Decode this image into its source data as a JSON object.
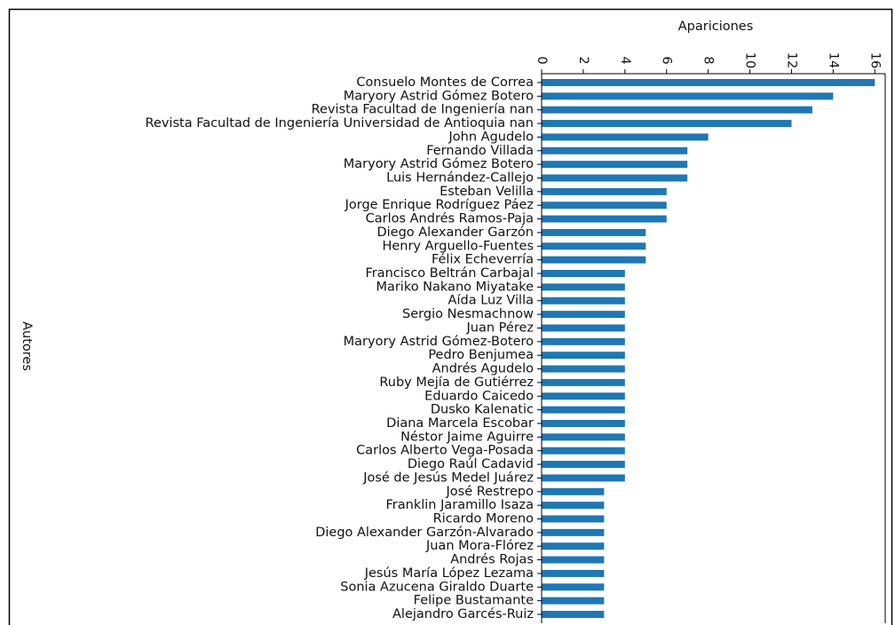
{
  "chart_data": {
    "type": "barh",
    "xlabel": "Apariciones",
    "ylabel": "Autores",
    "categories": [
      "Consuelo Montes de Correa",
      "Maryory Astrid Gómez Botero",
      "Revista Facultad de Ingeniería nan",
      "Revista Facultad de Ingeniería Universidad de Antioquia nan",
      "John Agudelo",
      "Fernando Villada",
      "Maryory Astrid  Gómez Botero",
      "Luis Hernández-Callejo",
      "Esteban Velilla",
      "Jorge Enrique Rodríguez Páez",
      "Carlos Andrés Ramos-Paja",
      "Diego Alexander Garzón",
      "Henry Arguello-Fuentes",
      "Félix Echeverría",
      "Francisco Beltrán Carbajal",
      "Mariko Nakano Miyatake",
      "Aída Luz Villa",
      "Sergio Nesmachnow",
      "Juan Pérez",
      "Maryory Astrid Gómez-Botero",
      "Pedro Benjumea",
      "Andrés Agudelo",
      "Ruby Mejía de Gutiérrez",
      "Eduardo Caicedo",
      "Dusko Kalenatic",
      "Diana Marcela Escobar",
      "Néstor Jaime Aguirre",
      "Carlos Alberto Vega-Posada",
      "Diego Raúl Cadavid",
      "José de Jesús Medel Juárez",
      "José Restrepo",
      "Franklin Jaramillo Isaza",
      "Ricardo Moreno",
      "Diego Alexander Garzón-Alvarado",
      "Juan Mora-Flórez",
      "Andrés Rojas",
      "Jesús María López Lezama",
      "Sonia Azucena Giraldo Duarte",
      "Felipe Bustamante",
      "Alejandro Garcés-Ruiz"
    ],
    "values": [
      16,
      14,
      13,
      12,
      8,
      7,
      7,
      7,
      6,
      6,
      6,
      5,
      5,
      5,
      4,
      4,
      4,
      4,
      4,
      4,
      4,
      4,
      4,
      4,
      4,
      4,
      4,
      4,
      4,
      4,
      3,
      3,
      3,
      3,
      3,
      3,
      3,
      3,
      3,
      3
    ],
    "color": "#1f77b4",
    "xlim": [
      0,
      16.5
    ],
    "xticks": [
      0,
      2,
      4,
      6,
      8,
      10,
      12,
      14,
      16
    ],
    "grid": false
  }
}
